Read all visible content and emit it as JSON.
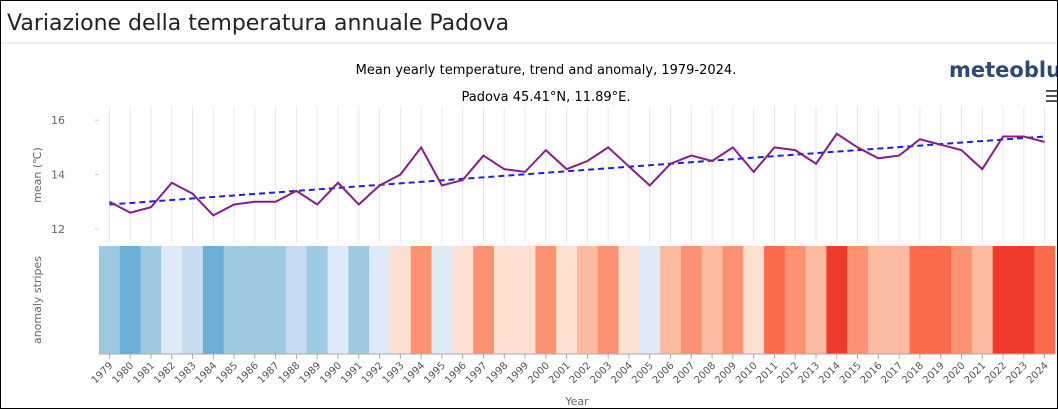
{
  "page_title": "Variazione della temperatura annuale Padova",
  "chart_data": {
    "type": "line",
    "title": "Mean yearly temperature, trend and anomaly, 1979-2024.",
    "subtitle": "Padova 45.41°N, 11.89°E.",
    "brand": "meteoblue",
    "ylabel": "mean (℃)",
    "stripes_label": "anomaly stripes",
    "xlabel": "Year",
    "categories": [
      1979,
      1980,
      1981,
      1982,
      1983,
      1984,
      1985,
      1986,
      1987,
      1988,
      1989,
      1990,
      1991,
      1992,
      1993,
      1994,
      1995,
      1996,
      1997,
      1998,
      1999,
      2000,
      2001,
      2002,
      2003,
      2004,
      2005,
      2006,
      2007,
      2008,
      2009,
      2010,
      2011,
      2012,
      2013,
      2014,
      2015,
      2016,
      2017,
      2018,
      2019,
      2020,
      2021,
      2022,
      2023,
      2024
    ],
    "series": [
      {
        "color": "#8b1a8b",
        "values": [
          13.0,
          12.6,
          12.8,
          13.7,
          13.3,
          12.5,
          12.9,
          13.0,
          13.0,
          13.4,
          12.9,
          13.7,
          12.9,
          13.6,
          14.0,
          15.0,
          13.6,
          13.8,
          14.7,
          14.2,
          14.1,
          14.9,
          14.2,
          14.5,
          15.0,
          14.3,
          13.6,
          14.4,
          14.7,
          14.5,
          15.0,
          14.1,
          15.0,
          14.9,
          14.4,
          15.5,
          15.0,
          14.6,
          14.7,
          15.3,
          15.1,
          14.9,
          14.2,
          15.4,
          15.4,
          15.2
        ]
      }
    ],
    "trend": {
      "color": "#1f1fe0",
      "x": [
        1979,
        2024
      ],
      "values": [
        12.9,
        15.4
      ]
    },
    "stripe_colors": [
      "#9ecae1",
      "#6baed6",
      "#9ecae1",
      "#deebf7",
      "#c6dbef",
      "#6baed6",
      "#9ecae1",
      "#9ecae1",
      "#9ecae1",
      "#c6dbef",
      "#9ecae1",
      "#deebf7",
      "#9ecae1",
      "#deebf7",
      "#fee0d2",
      "#fc9272",
      "#deebf7",
      "#fee0d2",
      "#fc9272",
      "#fee0d2",
      "#fee0d2",
      "#fc9272",
      "#fee0d2",
      "#fcbba1",
      "#fc9272",
      "#fee0d2",
      "#deebf7",
      "#fcbba1",
      "#fc9272",
      "#fcbba1",
      "#fc9272",
      "#fee0d2",
      "#fb6a4a",
      "#fc9272",
      "#fcbba1",
      "#ef3b2c",
      "#fc9272",
      "#fcbba1",
      "#fcbba1",
      "#fb6a4a",
      "#fb6a4a",
      "#fc9272",
      "#fcbba1",
      "#ef3b2c",
      "#ef3b2c",
      "#fb6a4a"
    ],
    "ylim": [
      11.5,
      16.5
    ],
    "yticks": [
      12,
      14,
      16
    ],
    "grid": true
  }
}
